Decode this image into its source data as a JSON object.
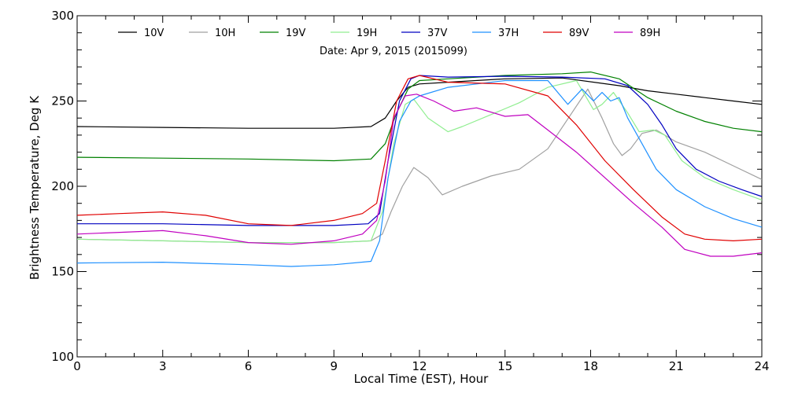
{
  "chart_data": {
    "type": "line",
    "title": "",
    "annotation": "Date: Apr  9, 2015 (2015099)",
    "xlabel": "Local Time (EST), Hour",
    "ylabel": "Brightness Temperature, Deg K",
    "xlim": [
      0,
      24
    ],
    "ylim": [
      100,
      300
    ],
    "xticks": [
      0,
      3,
      6,
      9,
      12,
      15,
      18,
      21,
      24
    ],
    "yticks": [
      100,
      150,
      200,
      250,
      300
    ],
    "grid": false,
    "legend_position": "top",
    "series": [
      {
        "name": "10V",
        "color": "#000000",
        "x": [
          0,
          3,
          6,
          9,
          10.3,
          10.8,
          11.2,
          11.6,
          12,
          13,
          15,
          17,
          19,
          20,
          21,
          22,
          23,
          24
        ],
        "y": [
          235,
          234.5,
          234,
          234,
          235,
          240,
          250,
          258,
          260,
          261,
          263,
          263.5,
          259,
          256,
          254,
          252,
          250,
          248
        ]
      },
      {
        "name": "10H",
        "color": "#a0a0a0",
        "x": [
          0,
          3,
          6,
          9,
          10.3,
          10.7,
          11,
          11.4,
          11.8,
          12.3,
          12.8,
          13.5,
          14.5,
          15.5,
          16.5,
          17.3,
          17.9,
          18.4,
          18.8,
          19.1,
          19.4,
          19.8,
          20.3,
          21,
          22,
          23,
          24
        ],
        "y": [
          169,
          168,
          167,
          167,
          168,
          172,
          185,
          200,
          211,
          205,
          195,
          200,
          206,
          210,
          222,
          242,
          257,
          240,
          225,
          218,
          222,
          231,
          233,
          226,
          220,
          212,
          204
        ]
      },
      {
        "name": "19V",
        "color": "#008000",
        "x": [
          0,
          3,
          6,
          9,
          10.3,
          10.8,
          11.2,
          11.6,
          12,
          13,
          15,
          17,
          18,
          19,
          20,
          21,
          22,
          23,
          24
        ],
        "y": [
          217,
          216.5,
          216,
          215,
          216,
          225,
          243,
          257,
          262,
          263,
          265,
          266,
          267,
          263,
          252,
          244,
          238,
          234,
          232
        ]
      },
      {
        "name": "19H",
        "color": "#90ee90",
        "x": [
          0,
          3,
          6,
          9,
          10.3,
          10.7,
          11.1,
          11.5,
          11.8,
          12.3,
          13,
          13.5,
          14.5,
          15.5,
          16.5,
          17.5,
          18.1,
          18.4,
          18.8,
          19.3,
          19.7,
          20.2,
          20.6,
          21.2,
          22,
          23,
          24
        ],
        "y": [
          169,
          168,
          167,
          167,
          168,
          185,
          225,
          248,
          251,
          240,
          232,
          235,
          242,
          249,
          258,
          262,
          245,
          248,
          255,
          243,
          232,
          233,
          230,
          215,
          205,
          198,
          192
        ]
      },
      {
        "name": "37V",
        "color": "#0000c0",
        "x": [
          0,
          3,
          6,
          9,
          10.2,
          10.6,
          10.9,
          11.3,
          11.7,
          12,
          13,
          15,
          17,
          18.5,
          19.3,
          20,
          20.5,
          21,
          21.7,
          22.5,
          23.3,
          24
        ],
        "y": [
          178,
          178,
          177,
          177,
          178,
          184,
          215,
          250,
          263,
          265,
          264,
          264.5,
          264,
          263,
          259,
          248,
          236,
          222,
          210,
          203,
          198,
          194
        ]
      },
      {
        "name": "37H",
        "color": "#1e90ff",
        "x": [
          0,
          3,
          6,
          7.5,
          9,
          10.3,
          10.6,
          10.9,
          11.3,
          11.7,
          12,
          13,
          15,
          16.5,
          17.2,
          17.7,
          18.1,
          18.4,
          18.7,
          19,
          19.3,
          19.8,
          20.3,
          21,
          22,
          23,
          24
        ],
        "y": [
          155,
          155.5,
          154,
          153,
          154,
          156,
          168,
          205,
          238,
          250,
          253,
          258,
          262,
          262,
          248,
          257,
          250,
          255,
          250,
          252,
          240,
          225,
          210,
          198,
          188,
          181,
          176
        ]
      },
      {
        "name": "89V",
        "color": "#e00000",
        "x": [
          0,
          1.5,
          3,
          4.5,
          6,
          7.5,
          9,
          10,
          10.5,
          10.8,
          11.2,
          11.6,
          12,
          13,
          15,
          16.5,
          17.5,
          18.5,
          19.5,
          20.5,
          21.3,
          22,
          23,
          24
        ],
        "y": [
          183,
          184,
          185,
          183,
          178,
          177,
          180,
          184,
          190,
          215,
          250,
          263,
          265,
          261,
          260,
          253,
          236,
          215,
          198,
          182,
          172,
          169,
          168,
          169
        ]
      },
      {
        "name": "89H",
        "color": "#c000c0",
        "x": [
          0,
          1.5,
          3,
          4.5,
          6,
          7.5,
          9,
          10,
          10.5,
          10.8,
          11.1,
          11.5,
          11.9,
          12.5,
          13.2,
          14,
          15,
          15.8,
          16.5,
          17.5,
          18.5,
          19.5,
          20.5,
          21.3,
          22.2,
          23,
          24
        ],
        "y": [
          172,
          173,
          174,
          171,
          167,
          166,
          168,
          172,
          180,
          203,
          240,
          253,
          254,
          250,
          244,
          246,
          241,
          242,
          233,
          220,
          205,
          190,
          176,
          163,
          159,
          159,
          161
        ]
      }
    ]
  }
}
